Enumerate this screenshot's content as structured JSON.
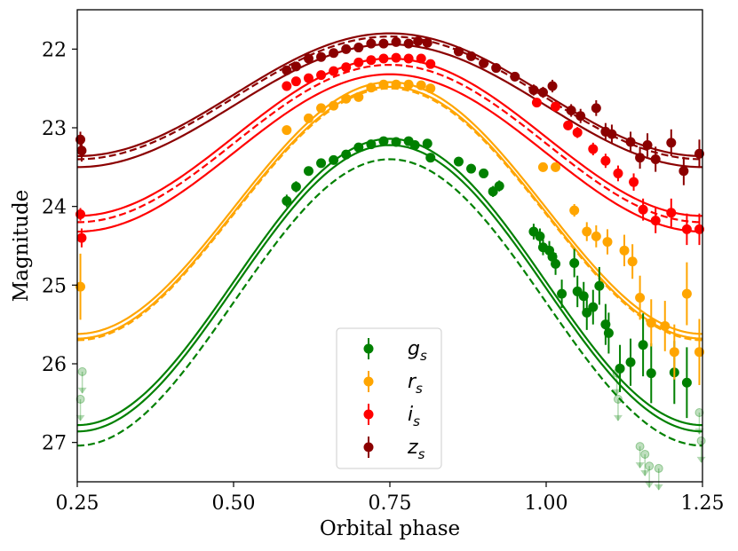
{
  "chart_data": {
    "type": "scatter",
    "title": "",
    "xlabel": "Orbital phase",
    "ylabel": "Magnitude",
    "xlim": [
      0.25,
      1.25
    ],
    "ylim": [
      27.5,
      21.5
    ],
    "y_inverted": true,
    "x_ticks": [
      0.25,
      0.5,
      0.75,
      1.0,
      1.25
    ],
    "x_tick_labels": [
      "0.25",
      "0.50",
      "0.75",
      "1.00",
      "1.25"
    ],
    "y_ticks": [
      22,
      23,
      24,
      25,
      26,
      27
    ],
    "y_tick_labels": [
      "22",
      "23",
      "24",
      "25",
      "26",
      "27"
    ],
    "legend_position": "bottom-center",
    "series": [
      {
        "name": "g",
        "sub": "s",
        "color": "#008000",
        "model": {
          "center": 25.0,
          "amplitude": 1.82,
          "offsets": [
            -0.04,
            0.04
          ],
          "dashed_center": 25.22,
          "dashed_amplitude": 1.82
        },
        "points": [
          {
            "x": 0.585,
            "y": 23.93,
            "err": 0.08
          },
          {
            "x": 0.6,
            "y": 23.75,
            "err": 0.07
          },
          {
            "x": 0.62,
            "y": 23.55,
            "err": 0.06
          },
          {
            "x": 0.64,
            "y": 23.45,
            "err": 0.05
          },
          {
            "x": 0.66,
            "y": 23.41,
            "err": 0.05
          },
          {
            "x": 0.68,
            "y": 23.34,
            "err": 0.05
          },
          {
            "x": 0.7,
            "y": 23.25,
            "err": 0.05
          },
          {
            "x": 0.72,
            "y": 23.21,
            "err": 0.05
          },
          {
            "x": 0.74,
            "y": 23.17,
            "err": 0.05
          },
          {
            "x": 0.76,
            "y": 23.18,
            "err": 0.05
          },
          {
            "x": 0.78,
            "y": 23.17,
            "err": 0.05
          },
          {
            "x": 0.79,
            "y": 23.22,
            "err": 0.05
          },
          {
            "x": 0.81,
            "y": 23.2,
            "err": 0.05
          },
          {
            "x": 0.815,
            "y": 23.38,
            "err": 0.06
          },
          {
            "x": 0.86,
            "y": 23.43,
            "err": 0.06
          },
          {
            "x": 0.88,
            "y": 23.52,
            "err": 0.06
          },
          {
            "x": 0.9,
            "y": 23.58,
            "err": 0.06
          },
          {
            "x": 0.915,
            "y": 23.81,
            "err": 0.07
          },
          {
            "x": 0.925,
            "y": 23.74,
            "err": 0.07
          },
          {
            "x": 0.98,
            "y": 24.32,
            "err": 0.1
          },
          {
            "x": 0.99,
            "y": 24.38,
            "err": 0.1
          },
          {
            "x": 0.995,
            "y": 24.52,
            "err": 0.1
          },
          {
            "x": 1.005,
            "y": 24.56,
            "err": 0.12
          },
          {
            "x": 1.01,
            "y": 24.64,
            "err": 0.12
          },
          {
            "x": 1.015,
            "y": 24.73,
            "err": 0.14
          },
          {
            "x": 1.025,
            "y": 25.11,
            "err": 0.18
          },
          {
            "x": 1.045,
            "y": 24.72,
            "err": 0.18
          },
          {
            "x": 1.05,
            "y": 25.08,
            "err": 0.2
          },
          {
            "x": 1.06,
            "y": 25.14,
            "err": 0.18
          },
          {
            "x": 1.065,
            "y": 25.35,
            "err": 0.22
          },
          {
            "x": 1.075,
            "y": 25.28,
            "err": 0.22
          },
          {
            "x": 1.085,
            "y": 25.01,
            "err": 0.24
          },
          {
            "x": 1.095,
            "y": 25.5,
            "err": 0.26
          },
          {
            "x": 1.1,
            "y": 25.61,
            "err": 0.26
          },
          {
            "x": 1.118,
            "y": 26.06,
            "err": 0.3
          },
          {
            "x": 1.135,
            "y": 25.98,
            "err": 0.3
          },
          {
            "x": 1.155,
            "y": 25.76,
            "err": 0.4
          },
          {
            "x": 1.168,
            "y": 26.12,
            "err": 0.38
          },
          {
            "x": 1.205,
            "y": 26.11,
            "err": 0.4
          },
          {
            "x": 1.225,
            "y": 26.24,
            "err": 0.45
          }
        ],
        "upper_limits": [
          {
            "x": 0.255,
            "y": 26.45
          },
          {
            "x": 0.258,
            "y": 26.1
          },
          {
            "x": 1.115,
            "y": 26.45
          },
          {
            "x": 1.113,
            "y": 26.12
          },
          {
            "x": 1.15,
            "y": 27.05
          },
          {
            "x": 1.158,
            "y": 27.15
          },
          {
            "x": 1.165,
            "y": 27.3
          },
          {
            "x": 1.18,
            "y": 27.33
          },
          {
            "x": 1.245,
            "y": 26.62
          },
          {
            "x": 1.248,
            "y": 26.98
          }
        ]
      },
      {
        "name": "r",
        "sub": "s",
        "color": "#ffa500",
        "model": {
          "center": 24.05,
          "amplitude": 1.6,
          "offsets": [
            -0.03,
            0.03
          ],
          "dashed_center": 24.1,
          "dashed_amplitude": 1.6
        },
        "points": [
          {
            "x": 0.255,
            "y": 25.02,
            "err": 0.42
          },
          {
            "x": 0.585,
            "y": 23.03,
            "err": 0.06
          },
          {
            "x": 0.62,
            "y": 22.88,
            "err": 0.05
          },
          {
            "x": 0.64,
            "y": 22.75,
            "err": 0.05
          },
          {
            "x": 0.66,
            "y": 22.72,
            "err": 0.05
          },
          {
            "x": 0.68,
            "y": 22.63,
            "err": 0.05
          },
          {
            "x": 0.7,
            "y": 22.61,
            "err": 0.05
          },
          {
            "x": 0.72,
            "y": 22.49,
            "err": 0.05
          },
          {
            "x": 0.74,
            "y": 22.45,
            "err": 0.05
          },
          {
            "x": 0.76,
            "y": 22.45,
            "err": 0.05
          },
          {
            "x": 0.78,
            "y": 22.45,
            "err": 0.05
          },
          {
            "x": 0.8,
            "y": 22.46,
            "err": 0.05
          },
          {
            "x": 0.815,
            "y": 22.5,
            "err": 0.05
          },
          {
            "x": 0.995,
            "y": 23.5,
            "err": 0.06
          },
          {
            "x": 1.015,
            "y": 23.5,
            "err": 0.06
          },
          {
            "x": 1.045,
            "y": 24.05,
            "err": 0.08
          },
          {
            "x": 1.065,
            "y": 24.32,
            "err": 0.12
          },
          {
            "x": 1.08,
            "y": 24.38,
            "err": 0.14
          },
          {
            "x": 1.098,
            "y": 24.45,
            "err": 0.16
          },
          {
            "x": 1.125,
            "y": 24.56,
            "err": 0.2
          },
          {
            "x": 1.138,
            "y": 24.7,
            "err": 0.22
          },
          {
            "x": 1.15,
            "y": 25.16,
            "err": 0.28
          },
          {
            "x": 1.168,
            "y": 25.48,
            "err": 0.3
          },
          {
            "x": 1.19,
            "y": 25.52,
            "err": 0.32
          },
          {
            "x": 1.205,
            "y": 25.85,
            "err": 0.35
          },
          {
            "x": 1.225,
            "y": 25.11,
            "err": 0.4
          },
          {
            "x": 1.245,
            "y": 25.85,
            "err": 0.42
          }
        ]
      },
      {
        "name": "i",
        "sub": "s",
        "color": "#ff0000",
        "model": {
          "center": 23.22,
          "amplitude": 1.0,
          "offsets": [
            -0.1,
            0.1
          ],
          "dashed_center": 23.2,
          "dashed_amplitude": 1.0
        },
        "points": [
          {
            "x": 0.255,
            "y": 24.1,
            "err": 0.08
          },
          {
            "x": 0.257,
            "y": 24.4,
            "err": 0.12
          },
          {
            "x": 0.585,
            "y": 22.47,
            "err": 0.06
          },
          {
            "x": 0.6,
            "y": 22.41,
            "err": 0.05
          },
          {
            "x": 0.62,
            "y": 22.37,
            "err": 0.05
          },
          {
            "x": 0.64,
            "y": 22.33,
            "err": 0.05
          },
          {
            "x": 0.66,
            "y": 22.28,
            "err": 0.05
          },
          {
            "x": 0.68,
            "y": 22.23,
            "err": 0.05
          },
          {
            "x": 0.7,
            "y": 22.17,
            "err": 0.05
          },
          {
            "x": 0.72,
            "y": 22.14,
            "err": 0.05
          },
          {
            "x": 0.74,
            "y": 22.12,
            "err": 0.05
          },
          {
            "x": 0.76,
            "y": 22.11,
            "err": 0.05
          },
          {
            "x": 0.78,
            "y": 22.12,
            "err": 0.05
          },
          {
            "x": 0.8,
            "y": 22.12,
            "err": 0.05
          },
          {
            "x": 0.815,
            "y": 22.19,
            "err": 0.05
          },
          {
            "x": 0.985,
            "y": 22.68,
            "err": 0.06
          },
          {
            "x": 1.015,
            "y": 22.73,
            "err": 0.06
          },
          {
            "x": 1.035,
            "y": 22.97,
            "err": 0.06
          },
          {
            "x": 1.05,
            "y": 23.06,
            "err": 0.07
          },
          {
            "x": 1.075,
            "y": 23.27,
            "err": 0.08
          },
          {
            "x": 1.095,
            "y": 23.42,
            "err": 0.09
          },
          {
            "x": 1.115,
            "y": 23.58,
            "err": 0.1
          },
          {
            "x": 1.14,
            "y": 23.69,
            "err": 0.11
          },
          {
            "x": 1.155,
            "y": 24.04,
            "err": 0.14
          },
          {
            "x": 1.175,
            "y": 24.18,
            "err": 0.16
          },
          {
            "x": 1.2,
            "y": 24.08,
            "err": 0.18
          },
          {
            "x": 1.225,
            "y": 24.29,
            "err": 0.2
          },
          {
            "x": 1.245,
            "y": 24.29,
            "err": 0.2
          }
        ]
      },
      {
        "name": "z",
        "sub": "s",
        "color": "#8b0000",
        "model": {
          "center": 22.65,
          "amplitude": 0.78,
          "offsets": [
            -0.07,
            0.07
          ],
          "dashed_center": 22.62,
          "dashed_amplitude": 0.78
        },
        "points": [
          {
            "x": 0.255,
            "y": 23.15,
            "err": 0.1
          },
          {
            "x": 0.257,
            "y": 23.29,
            "err": 0.14
          },
          {
            "x": 0.585,
            "y": 22.27,
            "err": 0.06
          },
          {
            "x": 0.6,
            "y": 22.22,
            "err": 0.05
          },
          {
            "x": 0.62,
            "y": 22.12,
            "err": 0.05
          },
          {
            "x": 0.64,
            "y": 22.1,
            "err": 0.05
          },
          {
            "x": 0.66,
            "y": 22.05,
            "err": 0.05
          },
          {
            "x": 0.68,
            "y": 22.0,
            "err": 0.05
          },
          {
            "x": 0.7,
            "y": 21.98,
            "err": 0.05
          },
          {
            "x": 0.72,
            "y": 21.93,
            "err": 0.05
          },
          {
            "x": 0.74,
            "y": 21.93,
            "err": 0.05
          },
          {
            "x": 0.76,
            "y": 21.91,
            "err": 0.05
          },
          {
            "x": 0.78,
            "y": 21.93,
            "err": 0.05
          },
          {
            "x": 0.795,
            "y": 21.9,
            "err": 0.05
          },
          {
            "x": 0.81,
            "y": 21.92,
            "err": 0.05
          },
          {
            "x": 0.86,
            "y": 22.03,
            "err": 0.05
          },
          {
            "x": 0.88,
            "y": 22.09,
            "err": 0.05
          },
          {
            "x": 0.9,
            "y": 22.18,
            "err": 0.06
          },
          {
            "x": 0.92,
            "y": 22.24,
            "err": 0.06
          },
          {
            "x": 0.95,
            "y": 22.35,
            "err": 0.06
          },
          {
            "x": 0.98,
            "y": 22.52,
            "err": 0.07
          },
          {
            "x": 0.995,
            "y": 22.55,
            "err": 0.07
          },
          {
            "x": 1.01,
            "y": 22.47,
            "err": 0.08
          },
          {
            "x": 1.04,
            "y": 22.78,
            "err": 0.08
          },
          {
            "x": 1.055,
            "y": 22.85,
            "err": 0.09
          },
          {
            "x": 1.08,
            "y": 22.75,
            "err": 0.1
          },
          {
            "x": 1.095,
            "y": 23.05,
            "err": 0.11
          },
          {
            "x": 1.105,
            "y": 23.08,
            "err": 0.12
          },
          {
            "x": 1.135,
            "y": 23.18,
            "err": 0.13
          },
          {
            "x": 1.15,
            "y": 23.38,
            "err": 0.14
          },
          {
            "x": 1.162,
            "y": 23.22,
            "err": 0.15
          },
          {
            "x": 1.175,
            "y": 23.4,
            "err": 0.16
          },
          {
            "x": 1.2,
            "y": 23.19,
            "err": 0.17
          },
          {
            "x": 1.22,
            "y": 23.55,
            "err": 0.18
          },
          {
            "x": 1.245,
            "y": 23.33,
            "err": 0.18
          }
        ]
      }
    ]
  }
}
